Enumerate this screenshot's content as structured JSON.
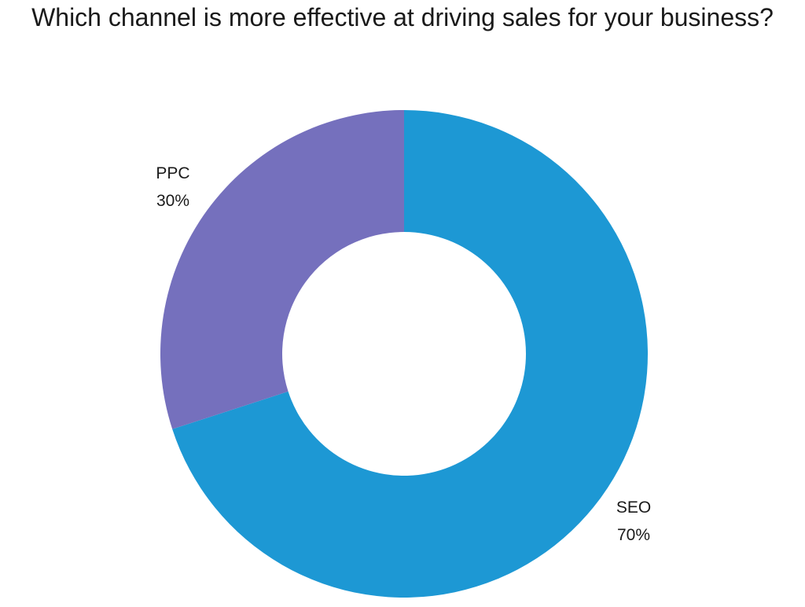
{
  "chart_data": {
    "type": "pie",
    "title": "Which channel is more effective at driving sales for your business?",
    "categories": [
      "SEO",
      "PPC"
    ],
    "values": [
      70,
      30
    ],
    "value_labels": [
      "70%",
      "30%"
    ],
    "colors": [
      "#1d98d4",
      "#7570bd"
    ],
    "donut": true,
    "legend": "none",
    "grid": false
  }
}
